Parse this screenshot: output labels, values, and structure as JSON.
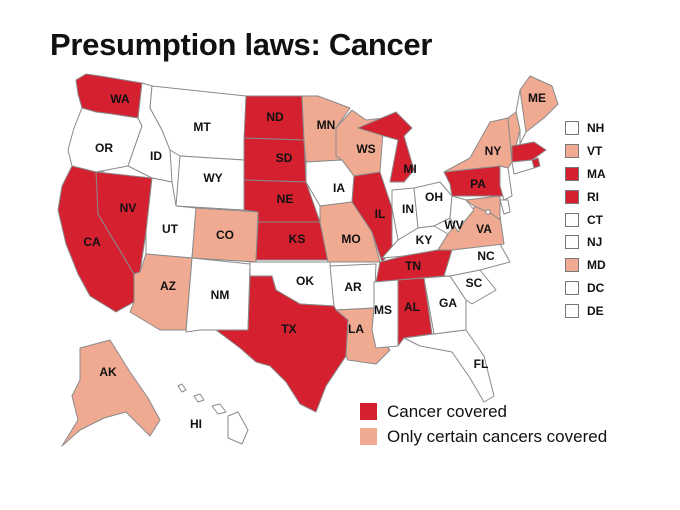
{
  "title": "Presumption laws: Cancer",
  "colors": {
    "full": "#d4202f",
    "partial": "#f0aa92",
    "none": "#ffffff",
    "border": "#8a8a8a"
  },
  "categories": {
    "full": "Cancer covered",
    "partial": "Only certain cancers covered"
  },
  "states": [
    {
      "abbr": "WA",
      "status": "full"
    },
    {
      "abbr": "OR",
      "status": "none"
    },
    {
      "abbr": "CA",
      "status": "full"
    },
    {
      "abbr": "NV",
      "status": "full"
    },
    {
      "abbr": "ID",
      "status": "none"
    },
    {
      "abbr": "MT",
      "status": "none"
    },
    {
      "abbr": "WY",
      "status": "none"
    },
    {
      "abbr": "UT",
      "status": "none"
    },
    {
      "abbr": "AZ",
      "status": "partial"
    },
    {
      "abbr": "CO",
      "status": "partial"
    },
    {
      "abbr": "NM",
      "status": "none"
    },
    {
      "abbr": "ND",
      "status": "full"
    },
    {
      "abbr": "SD",
      "status": "full"
    },
    {
      "abbr": "NE",
      "status": "full"
    },
    {
      "abbr": "KS",
      "status": "full"
    },
    {
      "abbr": "OK",
      "status": "none"
    },
    {
      "abbr": "TX",
      "status": "full"
    },
    {
      "abbr": "MN",
      "status": "partial"
    },
    {
      "abbr": "IA",
      "status": "none"
    },
    {
      "abbr": "MO",
      "status": "partial"
    },
    {
      "abbr": "AR",
      "status": "none"
    },
    {
      "abbr": "LA",
      "status": "partial"
    },
    {
      "abbr": "WS",
      "status": "partial"
    },
    {
      "abbr": "IL",
      "status": "full"
    },
    {
      "abbr": "MI",
      "status": "full"
    },
    {
      "abbr": "IN",
      "status": "none"
    },
    {
      "abbr": "OH",
      "status": "none"
    },
    {
      "abbr": "KY",
      "status": "none"
    },
    {
      "abbr": "TN",
      "status": "full"
    },
    {
      "abbr": "MS",
      "status": "none"
    },
    {
      "abbr": "AL",
      "status": "full"
    },
    {
      "abbr": "GA",
      "status": "none"
    },
    {
      "abbr": "FL",
      "status": "none"
    },
    {
      "abbr": "SC",
      "status": "none"
    },
    {
      "abbr": "NC",
      "status": "none"
    },
    {
      "abbr": "VA",
      "status": "partial"
    },
    {
      "abbr": "WV",
      "status": "none"
    },
    {
      "abbr": "PA",
      "status": "full"
    },
    {
      "abbr": "NY",
      "status": "partial"
    },
    {
      "abbr": "ME",
      "status": "partial"
    },
    {
      "abbr": "AK",
      "status": "partial"
    },
    {
      "abbr": "HI",
      "status": "none"
    }
  ],
  "small_states": [
    {
      "abbr": "NH",
      "status": "none"
    },
    {
      "abbr": "VT",
      "status": "partial"
    },
    {
      "abbr": "MA",
      "status": "full"
    },
    {
      "abbr": "RI",
      "status": "full"
    },
    {
      "abbr": "CT",
      "status": "none"
    },
    {
      "abbr": "NJ",
      "status": "none"
    },
    {
      "abbr": "MD",
      "status": "partial"
    },
    {
      "abbr": "DC",
      "status": "none"
    },
    {
      "abbr": "DE",
      "status": "none"
    }
  ]
}
